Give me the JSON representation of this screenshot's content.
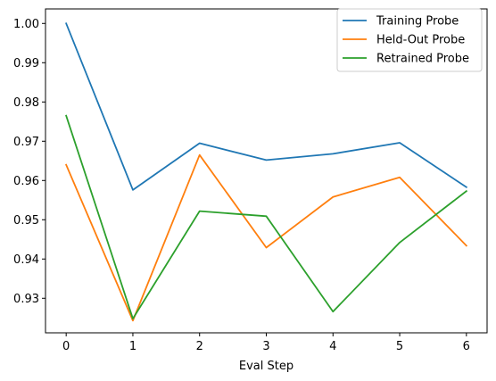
{
  "chart_data": {
    "type": "line",
    "title": "",
    "xlabel": "Eval Step",
    "ylabel": "",
    "x": [
      0,
      1,
      2,
      3,
      4,
      5,
      6
    ],
    "xticks": [
      "0",
      "1",
      "2",
      "3",
      "4",
      "5",
      "6"
    ],
    "xlim": [
      -0.31,
      6.31
    ],
    "ylim": [
      0.9212,
      1.0037
    ],
    "yticks": [
      "0.93",
      "0.94",
      "0.95",
      "0.96",
      "0.97",
      "0.98",
      "0.99",
      "1.00"
    ],
    "grid": false,
    "legend_position": "top-right",
    "series": [
      {
        "name": "Training Probe",
        "color": "#1f77b4",
        "values": [
          1.0,
          0.9576,
          0.9695,
          0.9652,
          0.9668,
          0.9696,
          0.9583
        ]
      },
      {
        "name": "Held-Out Probe",
        "color": "#ff7f0e",
        "values": [
          0.964,
          0.9243,
          0.9665,
          0.9429,
          0.9558,
          0.9608,
          0.9434
        ]
      },
      {
        "name": "Retrained Probe",
        "color": "#2ca02c",
        "values": [
          0.9765,
          0.9248,
          0.9522,
          0.9509,
          0.9266,
          0.9442,
          0.9573
        ]
      }
    ]
  }
}
